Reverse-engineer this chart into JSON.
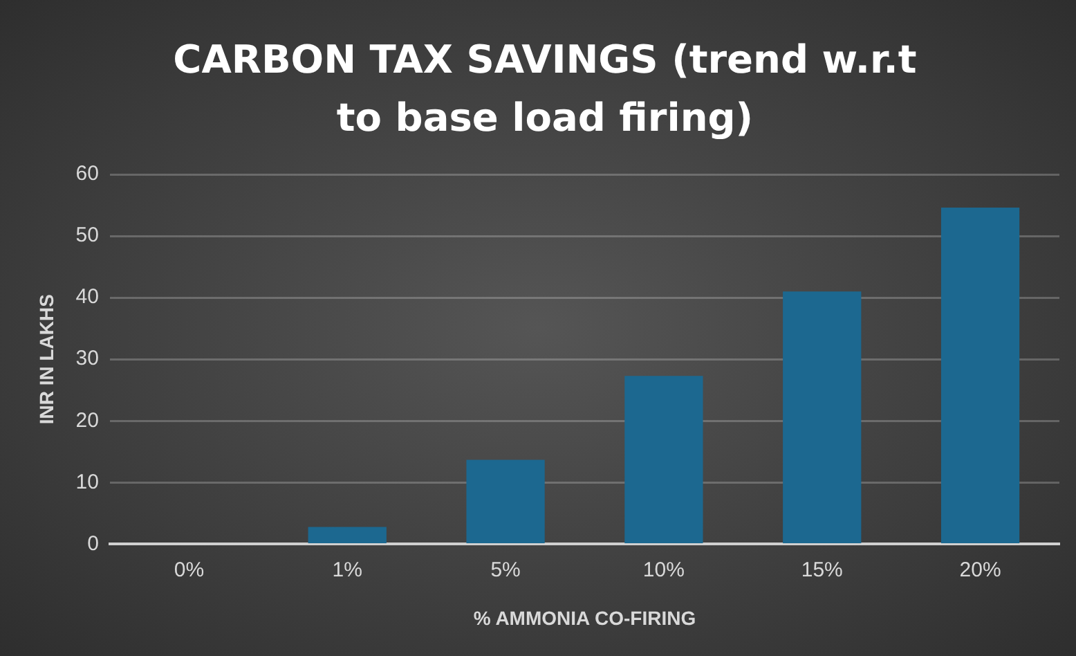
{
  "chart_data": {
    "type": "bar",
    "title": "CARBON TAX SAVINGS (trend w.r.t to base load firing)",
    "xlabel": "% AMMONIA CO-FIRING",
    "ylabel": "INR IN LAKHS",
    "categories": [
      "0%",
      "1%",
      "5%",
      "10%",
      "15%",
      "20%"
    ],
    "values": [
      0,
      2.8,
      13.7,
      27.3,
      41,
      54.6
    ],
    "color": "#1c6890",
    "ylim": [
      0,
      60
    ],
    "yticks": [
      0,
      10,
      20,
      30,
      40,
      50,
      60
    ],
    "grid": "y"
  }
}
